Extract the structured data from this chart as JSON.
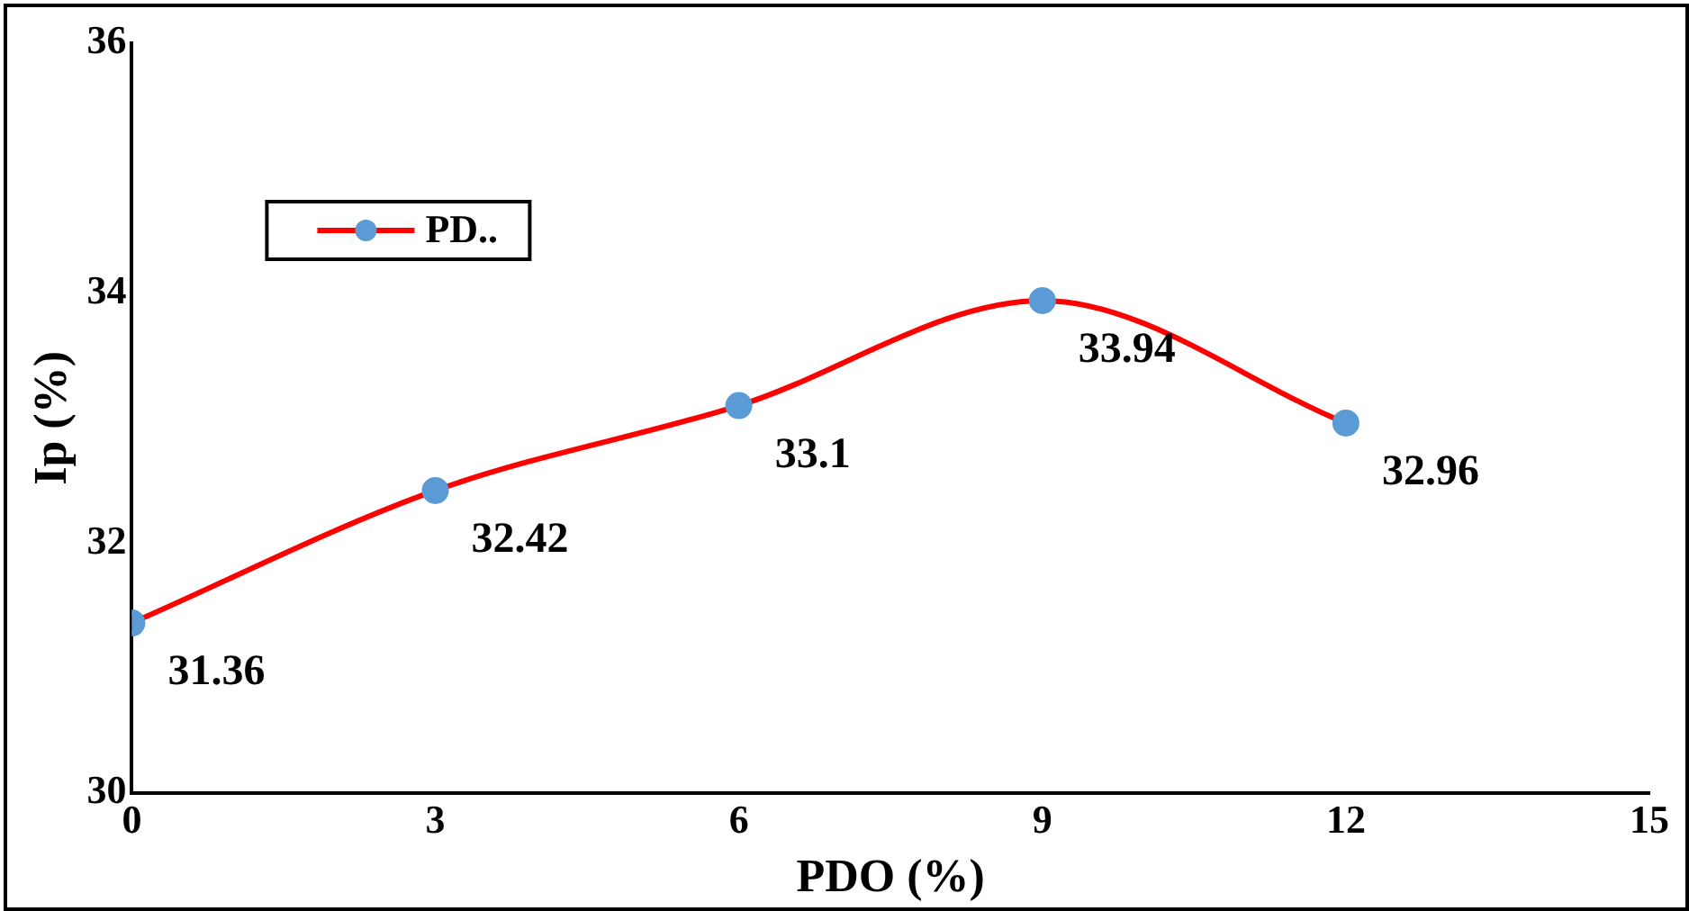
{
  "chart_data": {
    "type": "line",
    "xlabel": "PDO (%)",
    "ylabel": "Ip (%)",
    "x": [
      0,
      3,
      6,
      9,
      12
    ],
    "series": [
      {
        "name": "PD..",
        "color": "#ff0000",
        "values": [
          31.36,
          32.42,
          33.1,
          33.94,
          32.96
        ]
      }
    ],
    "xlim": [
      0,
      15
    ],
    "xticks": [
      0,
      3,
      6,
      9,
      12,
      15
    ],
    "ylim": [
      30,
      36
    ],
    "yticks": [
      30,
      32,
      34,
      36
    ],
    "grid": false,
    "legend": "top left",
    "marker": "circle",
    "line_style": "solid",
    "data_labels": true
  }
}
